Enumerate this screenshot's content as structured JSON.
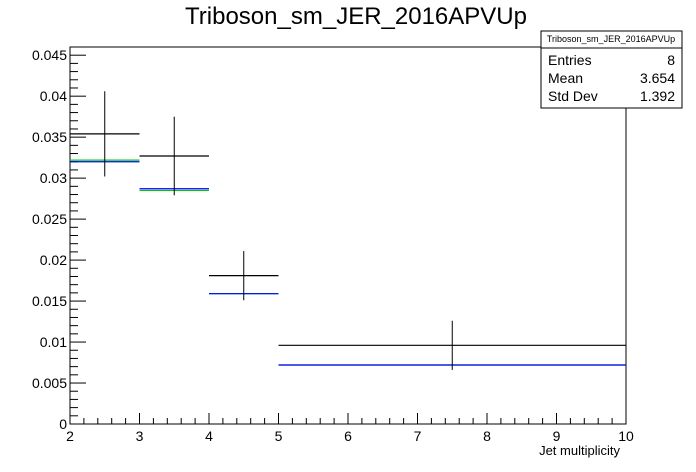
{
  "chart_data": {
    "type": "histogram",
    "title": "Triboson_sm_JER_2016APVUp",
    "xlabel": "Jet multiplicity",
    "ylabel": "",
    "xlim": [
      2,
      10
    ],
    "ylim": [
      0,
      0.046
    ],
    "x_ticks": [
      "2",
      "3",
      "4",
      "5",
      "6",
      "7",
      "8",
      "9",
      "10"
    ],
    "y_ticks": [
      "0",
      "0.005",
      "0.01",
      "0.015",
      "0.02",
      "0.025",
      "0.03",
      "0.035",
      "0.04",
      "0.045"
    ],
    "bins": [
      [
        2,
        3
      ],
      [
        3,
        4
      ],
      [
        4,
        5
      ],
      [
        5,
        10
      ]
    ],
    "series": [
      {
        "color": "#000000",
        "values": [
          0.0354,
          0.0327,
          0.0181,
          0.0096
        ],
        "errors": [
          0.0052,
          0.0048,
          0.003,
          0.003
        ],
        "style": "errorbar"
      },
      {
        "color": "#00cc00",
        "values": [
          0.0322,
          0.0285,
          0.0159,
          0.0072
        ],
        "style": "hist"
      },
      {
        "color": "#0000ff",
        "values": [
          0.032,
          0.0287,
          0.0159,
          0.0072
        ],
        "style": "hist"
      }
    ],
    "stats": {
      "title": "Triboson_sm_JER_2016APVUp",
      "rows": [
        {
          "label": "Entries",
          "value": "8"
        },
        {
          "label": "Mean",
          "value": "3.654"
        },
        {
          "label": "Std Dev",
          "value": "1.392"
        }
      ]
    }
  }
}
